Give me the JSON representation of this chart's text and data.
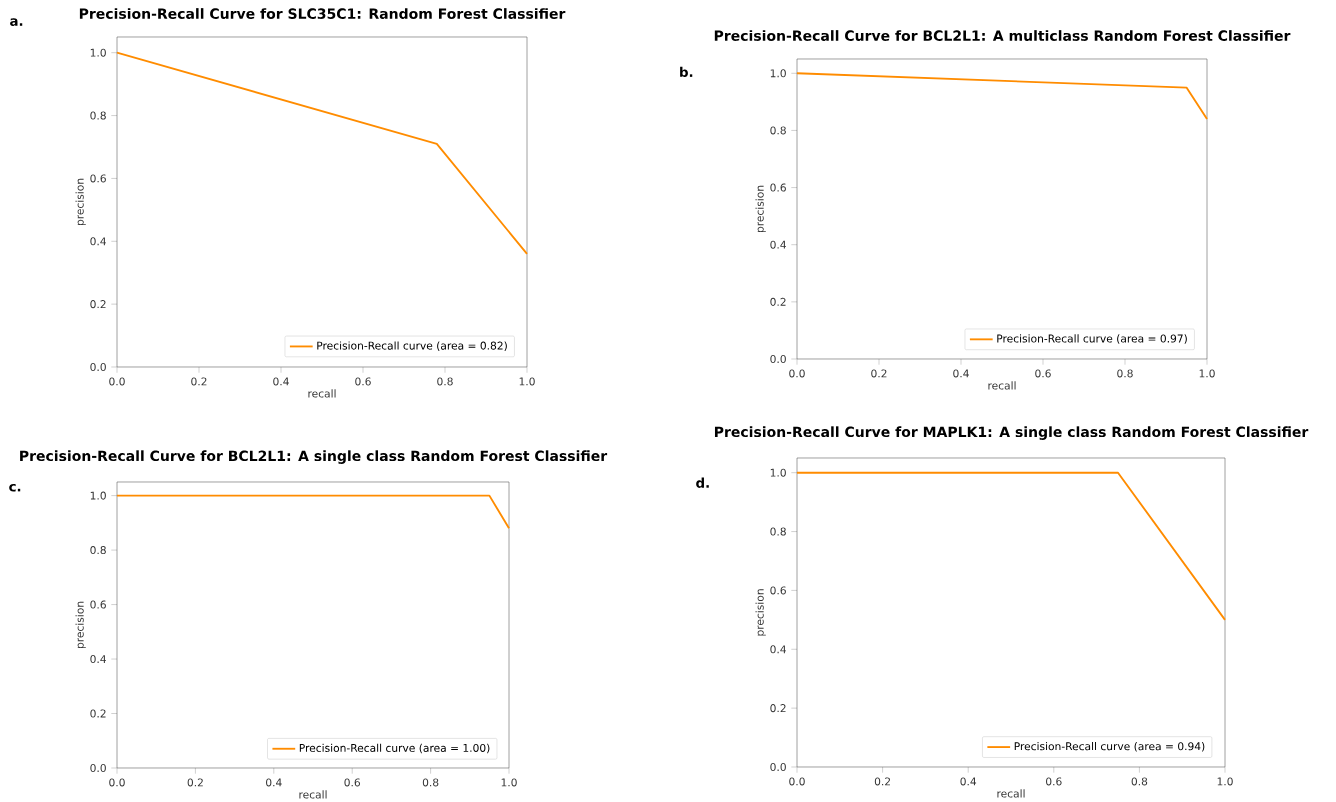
{
  "chart_data": [
    {
      "type": "line",
      "title": "Precision-Recall Curve for SLC35C1: Random Forest Classifier",
      "xlabel": "recall",
      "ylabel": "precision",
      "annotations": [
        "a."
      ],
      "legend": "bottom right",
      "xlim": [
        0,
        1
      ],
      "ylim": [
        0,
        1.05
      ],
      "xticks": [
        {
          "value": 0,
          "label": "0.0"
        },
        {
          "value": 0.2,
          "label": "0.2"
        },
        {
          "value": 0.4,
          "label": "0.4"
        },
        {
          "value": 0.6,
          "label": "0.6"
        },
        {
          "value": 0.8,
          "label": "0.8"
        },
        {
          "value": 1,
          "label": "1.0"
        }
      ],
      "yticks": [
        {
          "value": 0,
          "label": "0.0"
        },
        {
          "value": 0.2,
          "label": "0.2"
        },
        {
          "value": 0.4,
          "label": "0.4"
        },
        {
          "value": 0.6,
          "label": "0.6"
        },
        {
          "value": 0.8,
          "label": "0.8"
        },
        {
          "value": 1,
          "label": "1.0"
        }
      ],
      "series": [
        {
          "name": "Precision-Recall curve (area = 0.82)",
          "color": "#ff8c00",
          "x": [
            0,
            0.78,
            1
          ],
          "values": [
            1.0,
            0.71,
            0.36
          ]
        }
      ]
    },
    {
      "type": "line",
      "title": "Precision-Recall Curve for BCL2L1: A multiclass Random Forest Classifier",
      "xlabel": "recall",
      "ylabel": "precision",
      "annotations": [
        "b."
      ],
      "legend": "bottom right",
      "xlim": [
        0,
        1
      ],
      "ylim": [
        0,
        1.05
      ],
      "xticks": [
        {
          "value": 0,
          "label": "0.0"
        },
        {
          "value": 0.2,
          "label": "0.2"
        },
        {
          "value": 0.4,
          "label": "0.4"
        },
        {
          "value": 0.6,
          "label": "0.6"
        },
        {
          "value": 0.8,
          "label": "0.8"
        },
        {
          "value": 1,
          "label": "1.0"
        }
      ],
      "yticks": [
        {
          "value": 0,
          "label": "0.0"
        },
        {
          "value": 0.2,
          "label": "0.2"
        },
        {
          "value": 0.4,
          "label": "0.4"
        },
        {
          "value": 0.6,
          "label": "0.6"
        },
        {
          "value": 0.8,
          "label": "0.8"
        },
        {
          "value": 1,
          "label": "1.0"
        }
      ],
      "series": [
        {
          "name": "Precision-Recall curve (area = 0.97)",
          "color": "#ff8c00",
          "x": [
            0,
            0.95,
            1
          ],
          "values": [
            1.0,
            0.95,
            0.84
          ]
        }
      ]
    },
    {
      "type": "line",
      "title": "Precision-Recall Curve for BCL2L1: A single class Random Forest Classifier",
      "xlabel": "recall",
      "ylabel": "precision",
      "annotations": [
        "c."
      ],
      "legend": "bottom right",
      "xlim": [
        0,
        1
      ],
      "ylim": [
        0,
        1.05
      ],
      "xticks": [
        {
          "value": 0,
          "label": "0.0"
        },
        {
          "value": 0.2,
          "label": "0.2"
        },
        {
          "value": 0.4,
          "label": "0.4"
        },
        {
          "value": 0.6,
          "label": "0.6"
        },
        {
          "value": 0.8,
          "label": "0.8"
        },
        {
          "value": 1,
          "label": "1.0"
        }
      ],
      "yticks": [
        {
          "value": 0,
          "label": "0.0"
        },
        {
          "value": 0.2,
          "label": "0.2"
        },
        {
          "value": 0.4,
          "label": "0.4"
        },
        {
          "value": 0.6,
          "label": "0.6"
        },
        {
          "value": 0.8,
          "label": "0.8"
        },
        {
          "value": 1,
          "label": "1.0"
        }
      ],
      "series": [
        {
          "name": "Precision-Recall curve (area = 1.00)",
          "color": "#ff8c00",
          "x": [
            0,
            0.95,
            1
          ],
          "values": [
            1.0,
            1.0,
            0.88
          ]
        }
      ]
    },
    {
      "type": "line",
      "title": "Precision-Recall Curve for MAPLK1: A single class Random Forest Classifier",
      "xlabel": "recall",
      "ylabel": "precision",
      "annotations": [
        "d."
      ],
      "legend": "bottom right",
      "xlim": [
        0,
        1
      ],
      "ylim": [
        0,
        1.05
      ],
      "xticks": [
        {
          "value": 0,
          "label": "0.0"
        },
        {
          "value": 0.2,
          "label": "0.2"
        },
        {
          "value": 0.4,
          "label": "0.4"
        },
        {
          "value": 0.6,
          "label": "0.6"
        },
        {
          "value": 0.8,
          "label": "0.8"
        },
        {
          "value": 1,
          "label": "1.0"
        }
      ],
      "yticks": [
        {
          "value": 0,
          "label": "0.0"
        },
        {
          "value": 0.2,
          "label": "0.2"
        },
        {
          "value": 0.4,
          "label": "0.4"
        },
        {
          "value": 0.6,
          "label": "0.6"
        },
        {
          "value": 0.8,
          "label": "0.8"
        },
        {
          "value": 1,
          "label": "1.0"
        }
      ],
      "series": [
        {
          "name": "Precision-Recall curve (area = 0.94)",
          "color": "#ff8c00",
          "x": [
            0,
            0.75,
            1
          ],
          "values": [
            1.0,
            1.0,
            0.5
          ]
        }
      ]
    }
  ]
}
